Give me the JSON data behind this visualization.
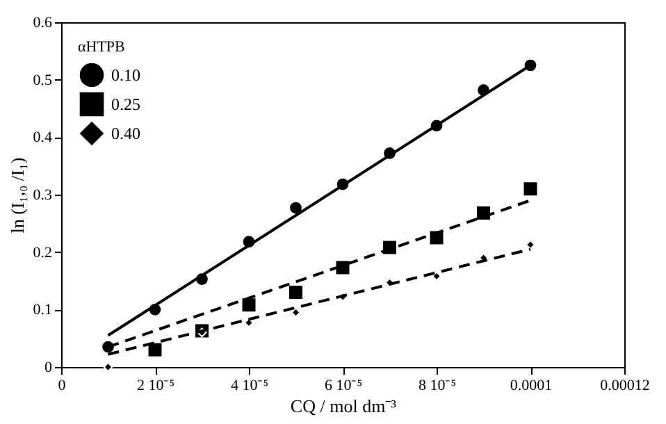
{
  "chart_data": {
    "type": "scatter",
    "xlabel": "CQ / mol dm⁻³",
    "ylabel": "ln (I₁,₀ /I₁)",
    "legend_title": "αHTPB",
    "legend": "top left",
    "grid": false,
    "xlim": [
      0,
      0.00012
    ],
    "ylim": [
      0,
      0.6
    ],
    "xticks": [
      0,
      {
        "value": 2e-05,
        "label": "2 10⁻⁵"
      },
      {
        "value": 4e-05,
        "label": "4 10⁻⁵"
      },
      {
        "value": 6e-05,
        "label": "6 10⁻⁵"
      },
      {
        "value": 8e-05,
        "label": "8 10⁻⁵"
      },
      0.0001,
      0.00012
    ],
    "yticks": [
      0,
      0.1,
      0.2,
      0.3,
      0.4,
      0.5,
      0.6
    ],
    "series": [
      {
        "name": "0.10",
        "color": "#000000",
        "marker": "circle",
        "line_style": "solid",
        "x": [
          1e-05,
          2e-05,
          3e-05,
          4e-05,
          5e-05,
          6e-05,
          7e-05,
          8e-05,
          9e-05,
          0.0001
        ],
        "values": [
          0.035,
          0.1,
          0.153,
          0.218,
          0.277,
          0.318,
          0.372,
          0.42,
          0.482,
          0.525
        ]
      },
      {
        "name": "0.25",
        "color": "#000000",
        "marker": "square",
        "line_style": "dashed",
        "x": [
          2e-05,
          3e-05,
          4e-05,
          5e-05,
          6e-05,
          7e-05,
          8e-05,
          9e-05,
          0.0001
        ],
        "values": [
          0.03,
          0.063,
          0.108,
          0.13,
          0.173,
          0.208,
          0.225,
          0.268,
          0.31
        ]
      },
      {
        "name": "0.40",
        "color": "#000000",
        "marker": "diamond",
        "line_style": "dashed",
        "x": [
          1e-05,
          3e-05,
          4e-05,
          5e-05,
          6e-05,
          7e-05,
          8e-05,
          9e-05,
          0.0001
        ],
        "values": [
          0.0,
          0.06,
          0.077,
          0.095,
          0.122,
          0.147,
          0.158,
          0.19,
          0.213
        ]
      },
      {
        "color": "#000000",
        "type": "line",
        "line_style": "solid",
        "marker": "none",
        "x": [
          1e-05,
          0.0001
        ],
        "values": [
          0.055,
          0.525
        ]
      },
      {
        "color": "#000000",
        "type": "line",
        "line_style": "dashed",
        "marker": "none",
        "x": [
          1e-05,
          0.0001
        ],
        "values": [
          0.035,
          0.29
        ]
      },
      {
        "color": "#000000",
        "type": "line",
        "line_style": "dashed",
        "marker": "none",
        "x": [
          1e-05,
          0.0001
        ],
        "values": [
          0.022,
          0.205
        ]
      }
    ]
  }
}
